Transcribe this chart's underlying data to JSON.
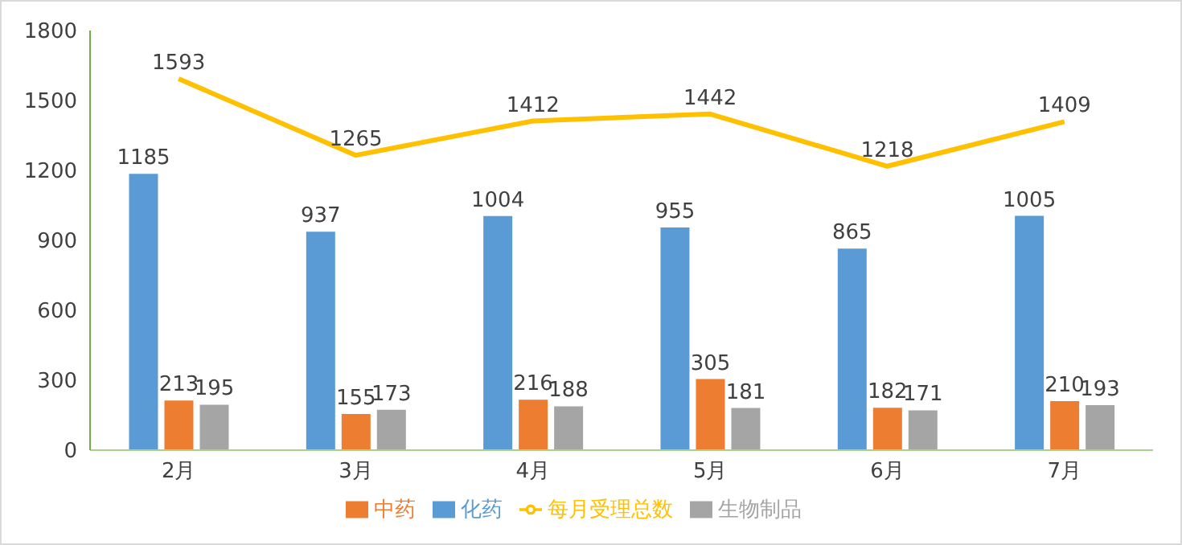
{
  "chart_data": {
    "type": "bar",
    "categories": [
      "2月",
      "3月",
      "4月",
      "5月",
      "6月",
      "7月"
    ],
    "series": [
      {
        "name": "化药",
        "color": "#5b9bd5",
        "values": [
          1185,
          937,
          1004,
          955,
          865,
          1005
        ]
      },
      {
        "name": "中药",
        "color": "#ed7d31",
        "values": [
          213,
          155,
          216,
          305,
          182,
          210
        ]
      },
      {
        "name": "生物制品",
        "color": "#a5a5a5",
        "values": [
          195,
          173,
          188,
          181,
          171,
          193
        ]
      },
      {
        "name": "每月受理总数",
        "color": "#ffc000",
        "type": "line",
        "values": [
          1593,
          1265,
          1412,
          1442,
          1218,
          1409
        ]
      }
    ],
    "ylim": [
      0,
      1800
    ],
    "yticks": [
      0,
      300,
      600,
      900,
      1200,
      1500,
      1800
    ],
    "data_labels": true,
    "legend": "bottom",
    "marker": "none"
  }
}
